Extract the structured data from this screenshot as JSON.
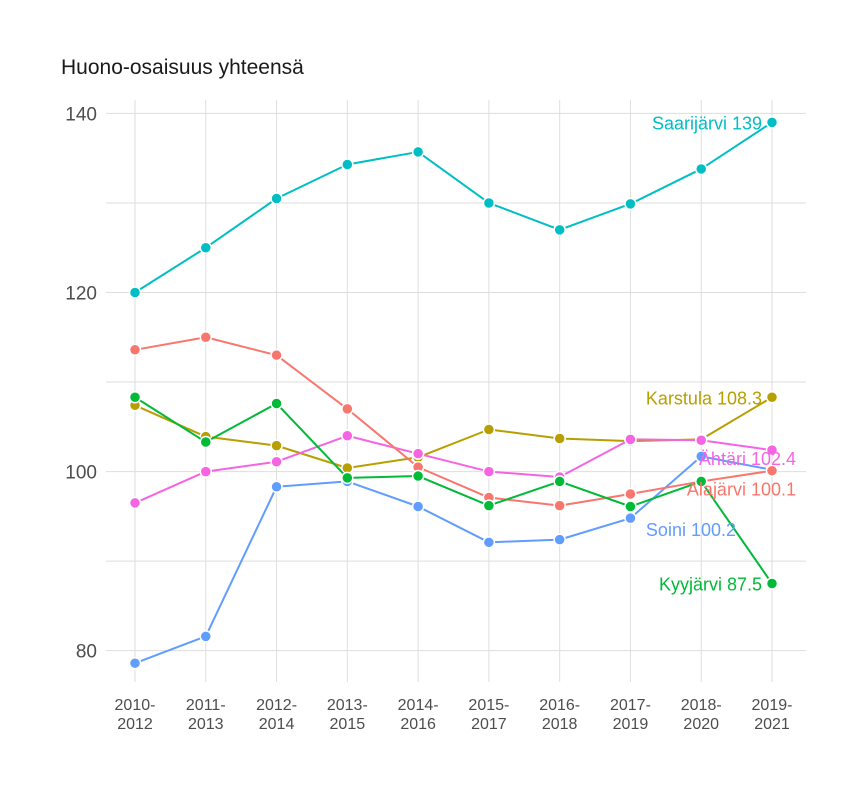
{
  "chart_data": {
    "type": "line",
    "title": "Huono-osaisuus yhteensä",
    "xlabel": "",
    "ylabel": "",
    "categories": [
      "2010-2012",
      "2011-2013",
      "2012-2014",
      "2013-2015",
      "2014-2016",
      "2015-2017",
      "2016-2018",
      "2017-2019",
      "2018-2020",
      "2019-2021"
    ],
    "category_lines": [
      [
        "2010-",
        "2012"
      ],
      [
        "2011-",
        "2013"
      ],
      [
        "2012-",
        "2014"
      ],
      [
        "2013-",
        "2015"
      ],
      [
        "2014-",
        "2016"
      ],
      [
        "2015-",
        "2017"
      ],
      [
        "2016-",
        "2018"
      ],
      [
        "2017-",
        "2019"
      ],
      [
        "2018-",
        "2020"
      ],
      [
        "2019-",
        "2021"
      ]
    ],
    "ylim": [
      76.5,
      141.5
    ],
    "yticks": [
      80,
      100,
      120,
      140
    ],
    "grid": true,
    "legend": "none",
    "series": [
      {
        "name": "Saarijärvi",
        "color": "#00BFC4",
        "end_label": "Saarijärvi 139",
        "values": [
          120,
          125,
          130.5,
          134.3,
          135.7,
          130,
          127,
          129.9,
          133.8,
          139
        ]
      },
      {
        "name": "Karstula",
        "color": "#B79F00",
        "end_label": "Karstula 108.3",
        "values": [
          107.4,
          103.9,
          102.9,
          100.4,
          101.6,
          104.7,
          103.7,
          103.4,
          103.6,
          108.3
        ]
      },
      {
        "name": "Ähtäri",
        "color": "#F564E3",
        "end_label": "Ähtäri 102.4",
        "values": [
          96.5,
          100,
          101.1,
          104,
          102,
          100,
          99.4,
          103.6,
          103.5,
          102.4
        ]
      },
      {
        "name": "Soini",
        "color": "#619CFF",
        "end_label": "Soini 100.2",
        "values": [
          78.6,
          81.6,
          98.3,
          98.9,
          96.1,
          92.1,
          92.4,
          94.8,
          101.7,
          100.2
        ]
      },
      {
        "name": "Alajärvi",
        "color": "#F8766D",
        "end_label": "Alajärvi 100.1",
        "values": [
          113.6,
          115,
          113,
          107,
          100.5,
          97.1,
          96.2,
          97.5,
          98.9,
          100.1
        ]
      },
      {
        "name": "Kyyjärvi",
        "color": "#00BA38",
        "end_label": "Kyyjärvi 87.5",
        "values": [
          108.3,
          103.3,
          107.6,
          99.3,
          99.5,
          96.2,
          98.9,
          96.1,
          98.9,
          87.5
        ]
      }
    ]
  }
}
